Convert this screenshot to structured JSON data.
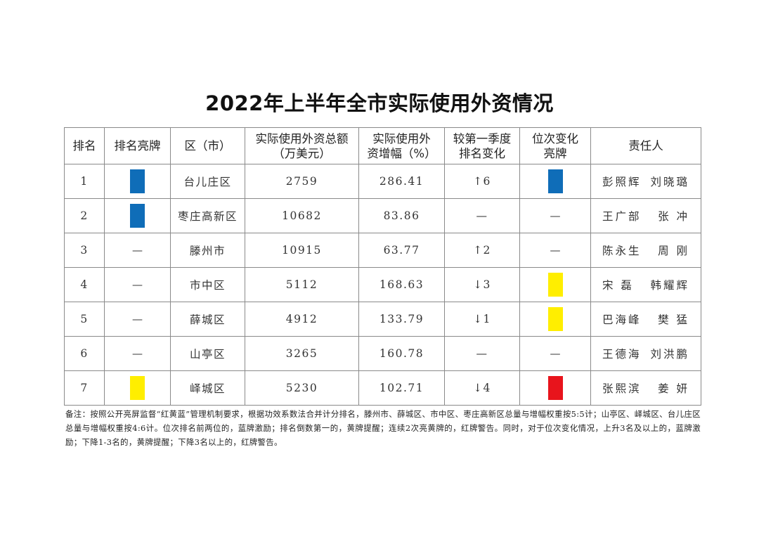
{
  "title": "2022年上半年全市实际使用外资情况",
  "colors": {
    "blue": "#0f6db8",
    "yellow": "#ffee00",
    "red": "#e8141c",
    "arrow_up": "#1f3fbf",
    "arrow_down": "#cc2020"
  },
  "table": {
    "headers": {
      "rank": "排名",
      "rank_badge": "排名亮牌",
      "district": "区（市）",
      "total_line1": "实际使用外资总额",
      "total_line2": "（万美元）",
      "growth_line1": "实际使用外",
      "growth_line2": "资增幅（%）",
      "change_line1": "较第一季度",
      "change_line2": "排名变化",
      "pos_line1": "位次变化",
      "pos_line2": "亮牌",
      "responsible": "责任人"
    },
    "rows": [
      {
        "rank": "1",
        "rank_badge": "blue",
        "district": "台儿庄区",
        "total": "2759",
        "growth": "286.41",
        "change": "↑6",
        "change_dir": "up",
        "pos_badge": "blue",
        "person1": "彭照辉",
        "person2": "刘晓璐"
      },
      {
        "rank": "2",
        "rank_badge": "blue",
        "district": "枣庄高新区",
        "total": "10682",
        "growth": "83.86",
        "change": "—",
        "change_dir": "none",
        "pos_badge": "none",
        "person1": "王广部",
        "person2": "张 冲"
      },
      {
        "rank": "3",
        "rank_badge": "none",
        "district": "滕州市",
        "total": "10915",
        "growth": "63.77",
        "change": "↑2",
        "change_dir": "up",
        "pos_badge": "none",
        "person1": "陈永生",
        "person2": "周 刚"
      },
      {
        "rank": "4",
        "rank_badge": "none",
        "district": "市中区",
        "total": "5112",
        "growth": "168.63",
        "change": "↓3",
        "change_dir": "down",
        "pos_badge": "yellow",
        "person1": "宋 磊",
        "person2": "韩耀辉"
      },
      {
        "rank": "5",
        "rank_badge": "none",
        "district": "薛城区",
        "total": "4912",
        "growth": "133.79",
        "change": "↓1",
        "change_dir": "down",
        "pos_badge": "yellow",
        "person1": "巴海峰",
        "person2": "樊 猛"
      },
      {
        "rank": "6",
        "rank_badge": "none",
        "district": "山亭区",
        "total": "3265",
        "growth": "160.78",
        "change": "—",
        "change_dir": "none",
        "pos_badge": "none",
        "person1": "王德海",
        "person2": "刘洪鹏"
      },
      {
        "rank": "7",
        "rank_badge": "yellow",
        "district": "峄城区",
        "total": "5230",
        "growth": "102.71",
        "change": "↓4",
        "change_dir": "down",
        "pos_badge": "red",
        "person1": "张熙滨",
        "person2": "姜 妍"
      }
    ],
    "empty_marker": "—"
  },
  "note": "备注：按照公开亮屏监督“红黄蓝”管理机制要求，根据功效系数法合并计分排名，滕州市、薛城区、市中区、枣庄高新区总量与增幅权重按5:5计；山亭区、峄城区、台儿庄区总量与增幅权重按4:6计。位次排名前两位的，蓝牌激励；排名倒数第一的，黄牌提醒；连续2次亮黄牌的，红牌警告。同时，对于位次变化情况，上升3名及以上的，蓝牌激励；下降1-3名的，黄牌提醒；下降3名以上的，红牌警告。"
}
